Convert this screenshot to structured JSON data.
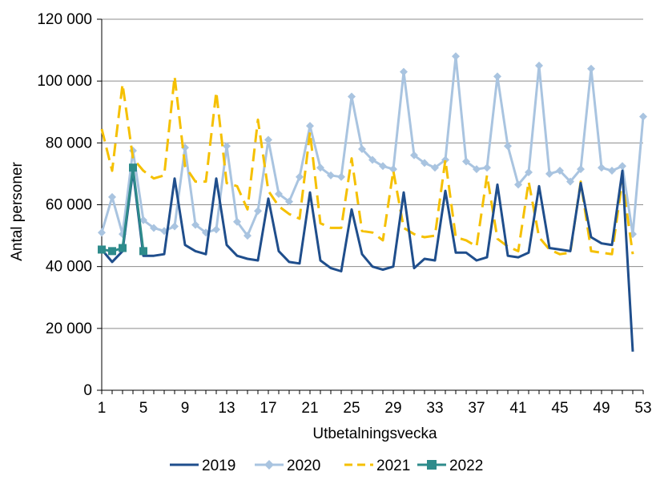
{
  "chart_data": {
    "type": "line",
    "title": "",
    "xlabel": "Utbetalningsvecka",
    "ylabel": "Antal personer",
    "ylim": [
      0,
      120000
    ],
    "xlim": [
      1,
      53
    ],
    "y_ticks": [
      0,
      20000,
      40000,
      60000,
      80000,
      100000,
      120000
    ],
    "y_tick_labels": [
      "0",
      "20 000",
      "40 000",
      "60 000",
      "80 000",
      "100 000",
      "120 000"
    ],
    "x_ticks": [
      1,
      5,
      9,
      13,
      17,
      21,
      25,
      29,
      33,
      37,
      41,
      45,
      49,
      53
    ],
    "x_tick_labels": [
      "1",
      "5",
      "9",
      "13",
      "17",
      "21",
      "25",
      "29",
      "33",
      "37",
      "41",
      "45",
      "49",
      "53"
    ],
    "grid": "horizontal",
    "legend_position": "bottom",
    "series": [
      {
        "name": "2019",
        "color": "#1f4e8c",
        "style": "solid",
        "marker": "none",
        "x": [
          1,
          2,
          3,
          4,
          5,
          6,
          7,
          8,
          9,
          10,
          11,
          12,
          13,
          14,
          15,
          16,
          17,
          18,
          19,
          20,
          21,
          22,
          23,
          24,
          25,
          26,
          27,
          28,
          29,
          30,
          31,
          32,
          33,
          34,
          35,
          36,
          37,
          38,
          39,
          40,
          41,
          42,
          43,
          44,
          45,
          46,
          47,
          48,
          49,
          50,
          51,
          52
        ],
        "values": [
          45500,
          41500,
          45000,
          71000,
          43500,
          43500,
          44000,
          68500,
          47000,
          45000,
          44000,
          68500,
          47000,
          43500,
          42500,
          42000,
          62000,
          45000,
          41500,
          41000,
          64000,
          42000,
          39500,
          38500,
          58500,
          44000,
          40000,
          39000,
          40000,
          64000,
          39500,
          42500,
          42000,
          64500,
          44500,
          44500,
          42000,
          43000,
          66500,
          43500,
          43000,
          44500,
          66000,
          46000,
          45500,
          45000,
          67000,
          49500,
          47500,
          47000,
          71000,
          12500
        ]
      },
      {
        "name": "2020",
        "color": "#a9c4e0",
        "style": "solid",
        "marker": "diamond",
        "x": [
          1,
          2,
          3,
          4,
          5,
          6,
          7,
          8,
          9,
          10,
          11,
          12,
          13,
          14,
          15,
          16,
          17,
          18,
          19,
          20,
          21,
          22,
          23,
          24,
          25,
          26,
          27,
          28,
          29,
          30,
          31,
          32,
          33,
          34,
          35,
          36,
          37,
          38,
          39,
          40,
          41,
          42,
          43,
          44,
          45,
          46,
          47,
          48,
          49,
          50,
          51,
          52,
          53
        ],
        "values": [
          51000,
          62500,
          50500,
          77500,
          55000,
          52500,
          51500,
          53000,
          78500,
          53500,
          51000,
          52000,
          79000,
          54500,
          50000,
          58000,
          81000,
          63500,
          61000,
          69000,
          85500,
          72000,
          69500,
          69000,
          95000,
          78000,
          74500,
          72500,
          71500,
          103000,
          76000,
          73500,
          72000,
          74500,
          108000,
          74000,
          71500,
          72000,
          101500,
          79000,
          66500,
          70500,
          105000,
          70000,
          71000,
          67500,
          71500,
          104000,
          72000,
          71000,
          72500,
          50500,
          88500
        ]
      },
      {
        "name": "2021",
        "color": "#f5c000",
        "style": "dashed",
        "marker": "none",
        "x": [
          1,
          2,
          3,
          4,
          5,
          6,
          7,
          8,
          9,
          10,
          11,
          12,
          13,
          14,
          15,
          16,
          17,
          18,
          19,
          20,
          21,
          22,
          23,
          24,
          25,
          26,
          27,
          28,
          29,
          30,
          31,
          32,
          33,
          34,
          35,
          36,
          37,
          38,
          39,
          40,
          41,
          42,
          43,
          44,
          45,
          46,
          47,
          48,
          49,
          50,
          51,
          52
        ],
        "values": [
          84500,
          71000,
          99000,
          75000,
          71000,
          68500,
          69500,
          101500,
          72500,
          67500,
          67500,
          96500,
          67000,
          66000,
          58500,
          87500,
          64500,
          59500,
          57000,
          55500,
          83500,
          54000,
          52500,
          52500,
          75000,
          51500,
          51000,
          48500,
          71000,
          52500,
          50500,
          49500,
          50000,
          74500,
          49500,
          48500,
          46500,
          69500,
          49000,
          46500,
          45000,
          67500,
          49500,
          45500,
          44000,
          44500,
          67500,
          45000,
          44500,
          44000,
          68000,
          44000
        ]
      },
      {
        "name": "2022",
        "color": "#2e8b8b",
        "style": "solid",
        "marker": "square",
        "x": [
          1,
          2,
          3,
          4,
          5
        ],
        "values": [
          45500,
          45000,
          46000,
          72000,
          45000
        ]
      }
    ]
  }
}
